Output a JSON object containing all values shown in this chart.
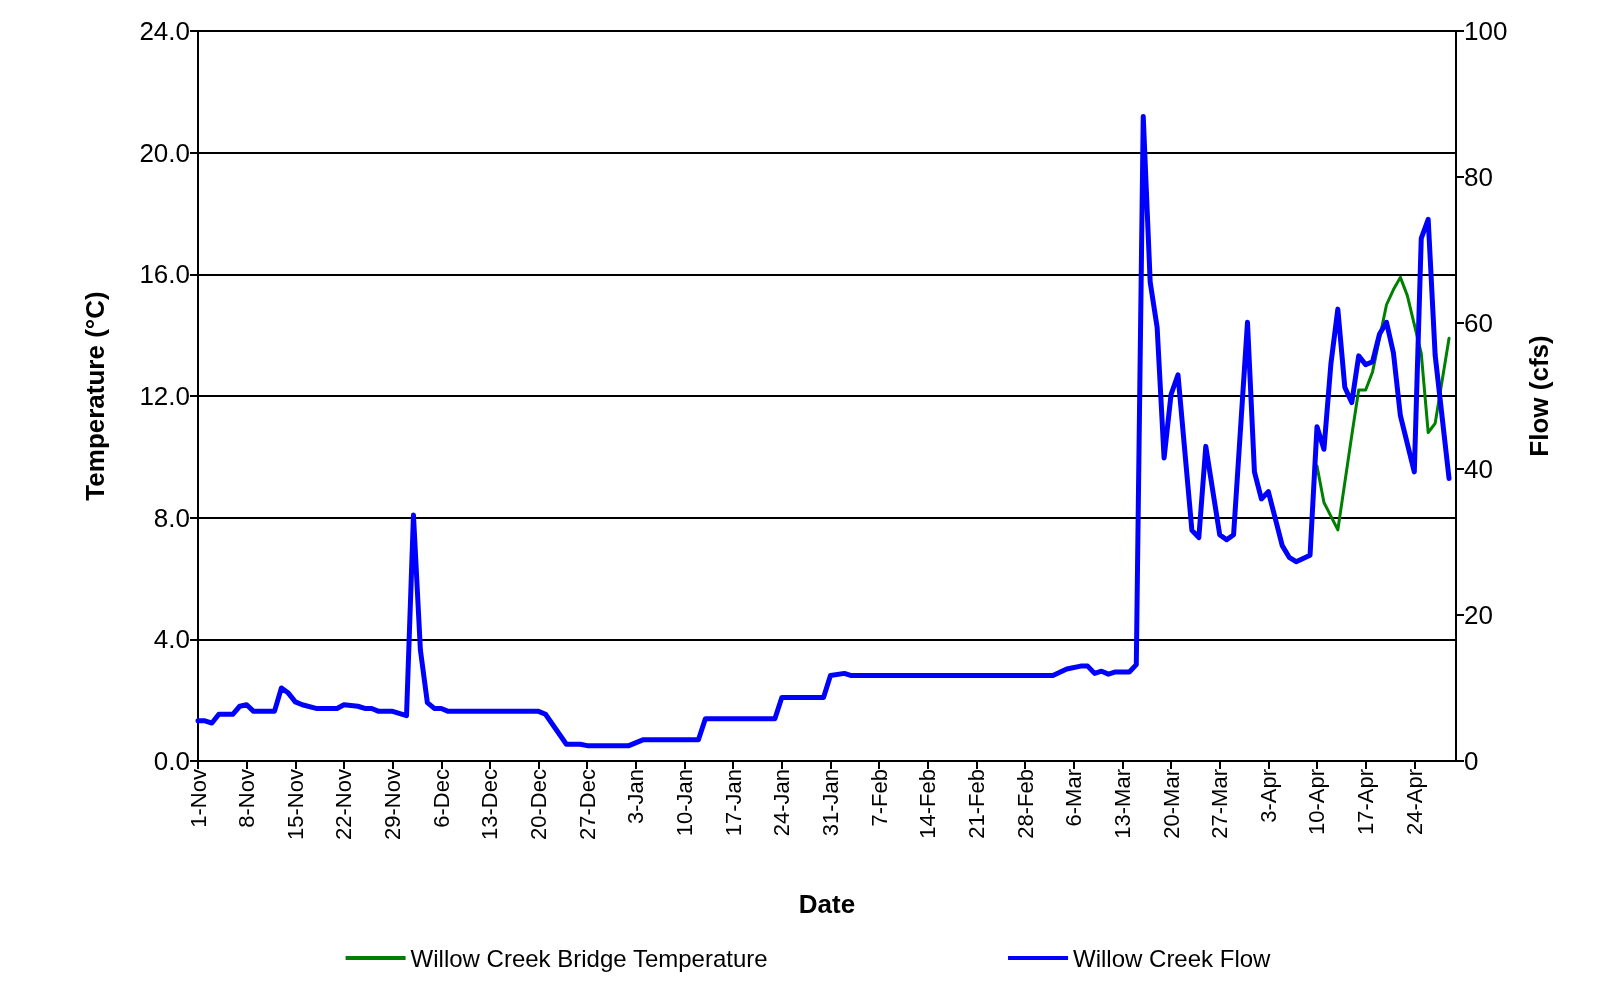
{
  "chart_data": {
    "type": "line",
    "xlabel": "Date",
    "ylabel": "Temperature (°C)",
    "y2label": "Flow (cfs)",
    "categories": [
      "1-Nov",
      null,
      null,
      null,
      null,
      null,
      null,
      "8-Nov",
      null,
      null,
      null,
      null,
      null,
      null,
      "15-Nov",
      null,
      null,
      null,
      null,
      null,
      null,
      "22-Nov",
      null,
      null,
      null,
      null,
      null,
      null,
      "29-Nov",
      null,
      null,
      null,
      null,
      null,
      null,
      "6-Dec",
      null,
      null,
      null,
      null,
      null,
      null,
      "13-Dec",
      null,
      null,
      null,
      null,
      null,
      null,
      "20-Dec",
      null,
      null,
      null,
      null,
      null,
      null,
      "27-Dec",
      null,
      null,
      null,
      null,
      null,
      null,
      "3-Jan",
      null,
      null,
      null,
      null,
      null,
      null,
      "10-Jan",
      null,
      null,
      null,
      null,
      null,
      null,
      "17-Jan",
      null,
      null,
      null,
      null,
      null,
      null,
      "24-Jan",
      null,
      null,
      null,
      null,
      null,
      null,
      "31-Jan",
      null,
      null,
      null,
      null,
      null,
      null,
      "7-Feb",
      null,
      null,
      null,
      null,
      null,
      null,
      "14-Feb",
      null,
      null,
      null,
      null,
      null,
      null,
      "21-Feb",
      null,
      null,
      null,
      null,
      null,
      null,
      "28-Feb",
      null,
      null,
      null,
      null,
      null,
      null,
      "6-Mar",
      null,
      null,
      null,
      null,
      null,
      null,
      "13-Mar",
      null,
      null,
      null,
      null,
      null,
      null,
      "20-Mar",
      null,
      null,
      null,
      null,
      null,
      null,
      "27-Mar",
      null,
      null,
      null,
      null,
      null,
      null,
      "3-Apr",
      null,
      null,
      null,
      null,
      null,
      null,
      "10-Apr",
      null,
      null,
      null,
      null,
      null,
      null,
      "17-Apr",
      null,
      null,
      null,
      null,
      null,
      null,
      "24-Apr",
      null,
      null,
      null,
      null,
      null,
      null
    ],
    "ylim": [
      0,
      24
    ],
    "yticks": [
      {
        "value": 0,
        "label": "0.0"
      },
      {
        "value": 4,
        "label": "4.0"
      },
      {
        "value": 8,
        "label": "8.0"
      },
      {
        "value": 12,
        "label": "12.0"
      },
      {
        "value": 16,
        "label": "16.0"
      },
      {
        "value": 20,
        "label": "20.0"
      },
      {
        "value": 24,
        "label": "24.0"
      }
    ],
    "y2lim": [
      0,
      100
    ],
    "y2ticks": [
      0,
      20,
      40,
      60,
      80,
      100
    ],
    "grid": "y",
    "legend": "bottom",
    "marker": "none",
    "line_style": "solid",
    "series": [
      {
        "name": "Willow Creek Bridge Temperature",
        "color": "#008000",
        "values": [
          null,
          null,
          null,
          null,
          null,
          null,
          null,
          null,
          null,
          null,
          null,
          null,
          null,
          null,
          null,
          null,
          null,
          null,
          null,
          null,
          null,
          null,
          null,
          null,
          null,
          null,
          null,
          null,
          null,
          null,
          null,
          null,
          null,
          null,
          null,
          null,
          null,
          null,
          null,
          null,
          null,
          null,
          null,
          null,
          null,
          null,
          null,
          null,
          null,
          null,
          null,
          null,
          null,
          null,
          null,
          null,
          null,
          null,
          null,
          null,
          null,
          null,
          null,
          null,
          null,
          null,
          null,
          null,
          null,
          null,
          null,
          null,
          null,
          null,
          null,
          null,
          null,
          null,
          null,
          null,
          null,
          null,
          null,
          null,
          null,
          null,
          null,
          null,
          null,
          null,
          null,
          null,
          null,
          null,
          null,
          null,
          null,
          null,
          null,
          null,
          null,
          null,
          null,
          null,
          null,
          null,
          null,
          null,
          null,
          null,
          null,
          null,
          null,
          null,
          null,
          null,
          null,
          null,
          null,
          null,
          null,
          null,
          null,
          null,
          null,
          null,
          null,
          null,
          null,
          null,
          null,
          null,
          null,
          null,
          null,
          null,
          null,
          null,
          null,
          null,
          null,
          null,
          null,
          null,
          null,
          null,
          null,
          null,
          null,
          null,
          null,
          null,
          null,
          null,
          null,
          null,
          null,
          null,
          null,
          null,
          null,
          9.7,
          8.5,
          null,
          7.6,
          null,
          10.7,
          12.2,
          12.2,
          12.8,
          null,
          15.0,
          15.5,
          15.9,
          15.3,
          null,
          13.4,
          10.8,
          11.1,
          null,
          13.9,
          null
        ]
      },
      {
        "name": "Willow Creek Flow",
        "color": "#0000ff",
        "axis": "y2",
        "values": [
          5.5,
          5.5,
          5.2,
          6.4,
          null,
          6.4,
          7.5,
          7.7,
          6.8,
          null,
          null,
          6.8,
          10.0,
          9.3,
          8.1,
          7.7,
          null,
          7.2,
          null,
          null,
          7.2,
          7.7,
          null,
          7.5,
          7.2,
          7.2,
          6.8,
          null,
          6.8,
          null,
          6.2,
          33.7,
          15.2,
          8.0,
          7.2,
          7.2,
          6.8,
          null,
          null,
          null,
          null,
          null,
          null,
          null,
          null,
          null,
          null,
          null,
          null,
          6.8,
          6.4,
          null,
          null,
          2.3,
          null,
          2.3,
          2.1,
          null,
          null,
          null,
          null,
          null,
          2.1,
          null,
          2.9,
          null,
          null,
          null,
          null,
          null,
          null,
          null,
          2.9,
          5.8,
          null,
          null,
          null,
          null,
          null,
          null,
          null,
          null,
          null,
          5.8,
          8.7,
          null,
          null,
          null,
          null,
          null,
          8.7,
          11.7,
          null,
          12.0,
          11.7,
          null,
          null,
          null,
          null,
          null,
          null,
          null,
          null,
          null,
          null,
          null,
          null,
          null,
          null,
          null,
          null,
          null,
          null,
          null,
          null,
          null,
          null,
          null,
          null,
          null,
          null,
          null,
          null,
          11.7,
          null,
          12.6,
          null,
          13.0,
          13.0,
          12.0,
          12.3,
          11.9,
          12.2,
          null,
          12.2,
          13.2,
          88.3,
          65.6,
          59.4,
          41.5,
          50.2,
          52.9,
          null,
          31.6,
          30.6,
          43.1,
          null,
          31.0,
          30.3,
          31.0,
          null,
          60.1,
          39.6,
          35.9,
          36.9,
          null,
          29.5,
          27.9,
          27.3,
          null,
          28.2,
          45.8,
          42.7,
          54.4,
          61.9,
          51.2,
          49.1,
          55.5,
          54.3,
          54.7,
          58.5,
          60.1,
          55.9,
          47.3,
          null,
          39.6,
          71.6,
          74.2,
          55.6,
          null,
          38.7,
          null
        ]
      }
    ]
  }
}
